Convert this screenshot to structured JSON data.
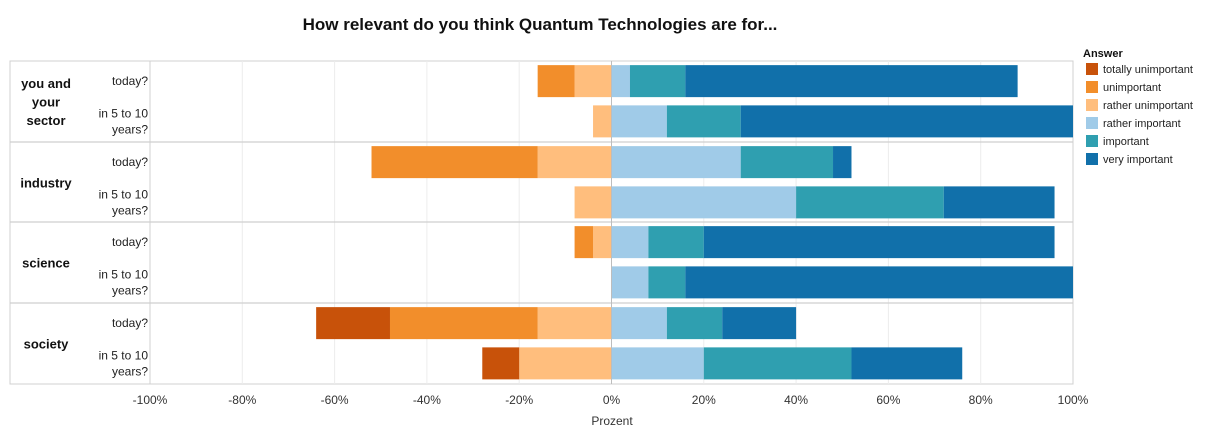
{
  "chart_data": {
    "type": "bar",
    "stacking": "diverging",
    "title": "How relevant do you think Quantum Technologies are for...",
    "xlabel": "Prozent",
    "xlim": [
      -100,
      100
    ],
    "x_ticks": [
      "-100%",
      "-80%",
      "-60%",
      "-40%",
      "-20%",
      "0%",
      "20%",
      "40%",
      "60%",
      "80%",
      "100%"
    ],
    "grid": true,
    "legend": {
      "title": "Answer",
      "placement": "right",
      "entries": [
        "totally unimportant",
        "unimportant",
        "rather unimportant",
        "rather important",
        "important",
        "very important"
      ]
    },
    "colors": {
      "totally unimportant": "#c8520a",
      "unimportant": "#f28e2b",
      "rather unimportant": "#ffbe7d",
      "rather important": "#a0cbe8",
      "important": "#2f9fb0",
      "very important": "#1170aa"
    },
    "groups": [
      {
        "label": "you and your sector",
        "rows": [
          {
            "label": [
              "today?"
            ],
            "values": {
              "totally unimportant": 0,
              "unimportant": 8,
              "rather unimportant": 8,
              "rather important": 4,
              "important": 12,
              "very important": 72
            }
          },
          {
            "label": [
              "in 5 to 10",
              "years?"
            ],
            "values": {
              "totally unimportant": 0,
              "unimportant": 0,
              "rather unimportant": 4,
              "rather important": 12,
              "important": 16,
              "very important": 72
            }
          }
        ]
      },
      {
        "label": "industry",
        "rows": [
          {
            "label": [
              "today?"
            ],
            "values": {
              "totally unimportant": 0,
              "unimportant": 36,
              "rather unimportant": 16,
              "rather important": 28,
              "important": 20,
              "very important": 4
            }
          },
          {
            "label": [
              "in 5 to 10",
              "years?"
            ],
            "values": {
              "totally unimportant": 0,
              "unimportant": 0,
              "rather unimportant": 8,
              "rather important": 40,
              "important": 32,
              "very important": 24
            }
          }
        ]
      },
      {
        "label": "science",
        "rows": [
          {
            "label": [
              "today?"
            ],
            "values": {
              "totally unimportant": 0,
              "unimportant": 4,
              "rather unimportant": 4,
              "rather important": 8,
              "important": 12,
              "very important": 76
            }
          },
          {
            "label": [
              "in 5 to 10",
              "years?"
            ],
            "values": {
              "totally unimportant": 0,
              "unimportant": 0,
              "rather unimportant": 0,
              "rather important": 8,
              "important": 8,
              "very important": 88
            }
          }
        ]
      },
      {
        "label": "society",
        "rows": [
          {
            "label": [
              "today?"
            ],
            "values": {
              "totally unimportant": 16,
              "unimportant": 32,
              "rather unimportant": 16,
              "rather important": 12,
              "important": 12,
              "very important": 16
            }
          },
          {
            "label": [
              "in 5 to 10",
              "years?"
            ],
            "values": {
              "totally unimportant": 8,
              "unimportant": 0,
              "rather unimportant": 20,
              "rather important": 20,
              "important": 32,
              "very important": 24
            }
          }
        ]
      }
    ]
  }
}
